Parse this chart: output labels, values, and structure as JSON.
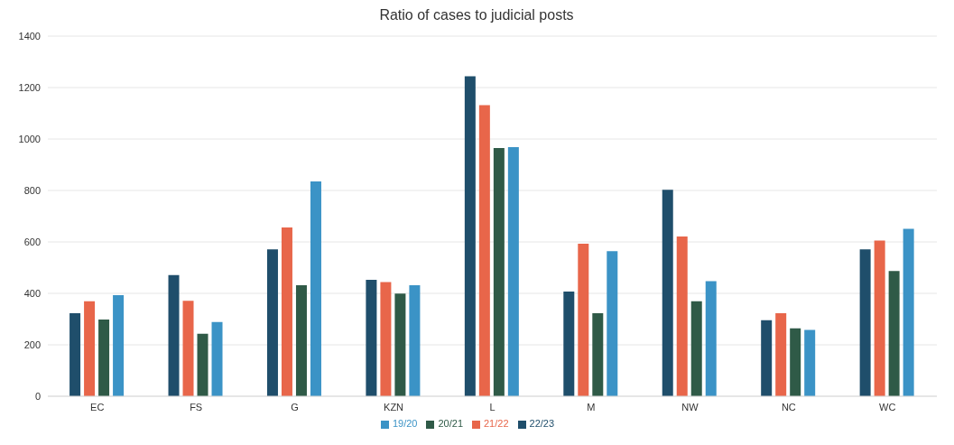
{
  "chart_data": {
    "type": "bar",
    "title": "Ratio of cases to judicial posts",
    "categories": [
      "EC",
      "FS",
      "G",
      "KZN",
      "L",
      "M",
      "NW",
      "NC",
      "WC"
    ],
    "series": [
      {
        "name": "22/23",
        "color": "#1f4e6b",
        "values": [
          323,
          471,
          571,
          453,
          1244,
          407,
          803,
          296,
          571
        ]
      },
      {
        "name": "21/22",
        "color": "#e8664a",
        "values": [
          369,
          371,
          656,
          444,
          1132,
          593,
          621,
          323,
          605
        ]
      },
      {
        "name": "20/21",
        "color": "#2f5a47",
        "values": [
          298,
          243,
          432,
          399,
          965,
          323,
          369,
          264,
          487
        ]
      },
      {
        "name": "19/20",
        "color": "#3b93c6",
        "values": [
          393,
          289,
          835,
          432,
          968,
          564,
          447,
          258,
          651
        ]
      }
    ],
    "ylim": [
      0,
      1400
    ],
    "yticks": [
      0,
      200,
      400,
      600,
      800,
      1000,
      1200,
      1400
    ],
    "grid": "y",
    "legend": "bottom"
  }
}
